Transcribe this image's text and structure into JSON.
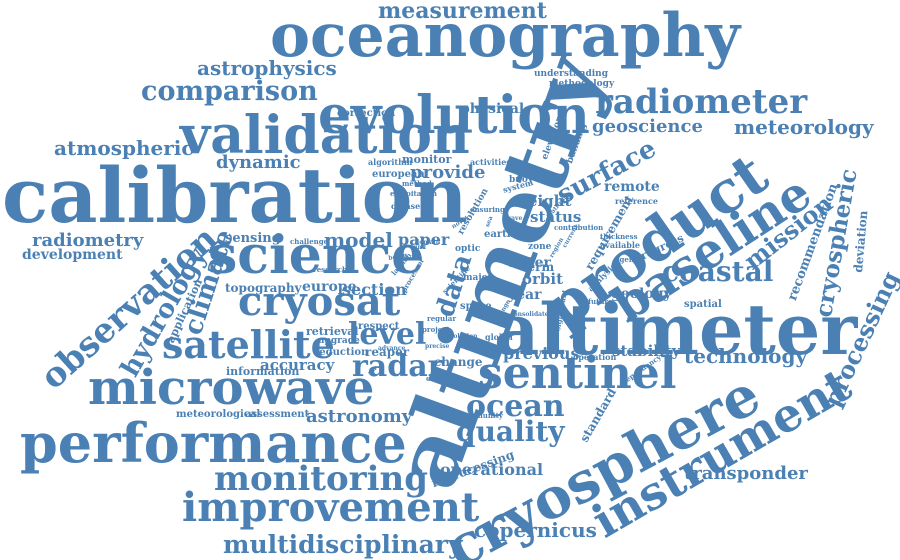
{
  "color": "#4a80b3",
  "words": [
    {
      "text": "altimetry",
      "weight": 1.0
    },
    {
      "text": "calibration",
      "weight": 0.95
    },
    {
      "text": "oceanography",
      "weight": 0.85
    },
    {
      "text": "altimeter",
      "weight": 0.85
    },
    {
      "text": "cryosphere",
      "weight": 0.8
    },
    {
      "text": "product",
      "weight": 0.78
    },
    {
      "text": "performance",
      "weight": 0.75
    },
    {
      "text": "validation",
      "weight": 0.72
    },
    {
      "text": "microwave",
      "weight": 0.7
    },
    {
      "text": "instrument",
      "weight": 0.68
    },
    {
      "text": "science",
      "weight": 0.65
    },
    {
      "text": "baseline",
      "weight": 0.65
    },
    {
      "text": "sentinel",
      "weight": 0.6
    },
    {
      "text": "evolution",
      "weight": 0.58
    },
    {
      "text": "improvement",
      "weight": 0.55
    },
    {
      "text": "cryosat",
      "weight": 0.55
    },
    {
      "text": "satellite",
      "weight": 0.52
    },
    {
      "text": "observation",
      "weight": 0.5
    },
    {
      "text": "monitoring",
      "weight": 0.5
    },
    {
      "text": "multidisciplinary",
      "weight": 0.45
    },
    {
      "text": "radiometer",
      "weight": 0.45
    },
    {
      "text": "comparison",
      "weight": 0.42
    },
    {
      "text": "surface",
      "weight": 0.42
    },
    {
      "text": "mission",
      "weight": 0.4
    },
    {
      "text": "coastal",
      "weight": 0.4
    },
    {
      "text": "ocean",
      "weight": 0.4
    },
    {
      "text": "quality",
      "weight": 0.38
    },
    {
      "text": "radar",
      "weight": 0.38
    },
    {
      "text": "level",
      "weight": 0.36
    },
    {
      "text": "copernicus",
      "weight": 0.35
    },
    {
      "text": "measurement",
      "weight": 0.35
    },
    {
      "text": "climate",
      "weight": 0.35
    },
    {
      "text": "hydrology",
      "weight": 0.34
    },
    {
      "text": "processing",
      "weight": 0.34
    },
    {
      "text": "cryospheric",
      "weight": 0.33
    },
    {
      "text": "transponder",
      "weight": 0.33
    },
    {
      "text": "astrophysics",
      "weight": 0.32
    },
    {
      "text": "meteorology",
      "weight": 0.32
    },
    {
      "text": "atmospheric",
      "weight": 0.3
    },
    {
      "text": "geoscience",
      "weight": 0.3
    },
    {
      "text": "technology",
      "weight": 0.3
    },
    {
      "text": "model",
      "weight": 0.3
    },
    {
      "text": "data",
      "weight": 0.3
    },
    {
      "text": "radiometry",
      "weight": 0.28
    },
    {
      "text": "astronomy",
      "weight": 0.28
    },
    {
      "text": "dynamic",
      "weight": 0.28
    },
    {
      "text": "provide",
      "weight": 0.27
    },
    {
      "text": "previous",
      "weight": 0.26
    },
    {
      "text": "operational",
      "weight": 0.25
    },
    {
      "text": "accuracy",
      "weight": 0.25
    },
    {
      "text": "height",
      "weight": 0.25
    },
    {
      "text": "status",
      "weight": 0.25
    },
    {
      "text": "orbit",
      "weight": 0.25
    },
    {
      "text": "stability",
      "weight": 0.24
    },
    {
      "text": "development",
      "weight": 0.24
    },
    {
      "text": "paper",
      "weight": 0.24
    },
    {
      "text": "europe",
      "weight": 0.24
    },
    {
      "text": "section",
      "weight": 0.24
    },
    {
      "text": "physical",
      "weight": 0.23
    },
    {
      "text": "geology",
      "weight": 0.23
    },
    {
      "text": "year",
      "weight": 0.23
    },
    {
      "text": "remote",
      "weight": 0.22
    },
    {
      "text": "sensing",
      "weight": 0.22
    },
    {
      "text": "topography",
      "weight": 0.22
    },
    {
      "text": "water",
      "weight": 0.22
    },
    {
      "text": "information",
      "weight": 0.21
    },
    {
      "text": "reaper",
      "weight": 0.2
    },
    {
      "text": "change",
      "weight": 0.2
    },
    {
      "text": "respect",
      "weight": 0.2
    },
    {
      "text": "retrieval",
      "weight": 0.2
    },
    {
      "text": "reduction",
      "weight": 0.2
    },
    {
      "text": "upgrade",
      "weight": 0.2
    },
    {
      "text": "application",
      "weight": 0.2
    },
    {
      "text": "term",
      "weight": 0.2
    },
    {
      "text": "reprocessing",
      "weight": 0.2
    },
    {
      "text": "standard",
      "weight": 0.2
    },
    {
      "text": "correction",
      "weight": 0.18
    },
    {
      "text": "understanding",
      "weight": 0.18
    },
    {
      "text": "methodology",
      "weight": 0.18
    },
    {
      "text": "monitor",
      "weight": 0.18
    },
    {
      "text": "european",
      "weight": 0.18
    },
    {
      "text": "algorithm",
      "weight": 0.17
    },
    {
      "text": "activities",
      "weight": 0.17
    },
    {
      "text": "elevation",
      "weight": 0.17
    },
    {
      "text": "building",
      "weight": 0.17
    },
    {
      "text": "system",
      "weight": 0.17
    },
    {
      "text": "buoy",
      "weight": 0.17
    },
    {
      "text": "earth",
      "weight": 0.16
    },
    {
      "text": "optic",
      "weight": 0.16
    },
    {
      "text": "land",
      "weight": 0.16
    },
    {
      "text": "zone",
      "weight": 0.16
    },
    {
      "text": "major",
      "weight": 0.16
    },
    {
      "text": "space",
      "weight": 0.15
    },
    {
      "text": "dataset",
      "weight": 0.15
    },
    {
      "text": "ensuring",
      "weight": 0.15
    },
    {
      "text": "resolution",
      "weight": 0.15
    },
    {
      "text": "requirement",
      "weight": 0.15
    },
    {
      "text": "progress",
      "weight": 0.15
    },
    {
      "text": "recommendation",
      "weight": 0.15
    },
    {
      "text": "deviation",
      "weight": 0.14
    },
    {
      "text": "spatial",
      "weight": 0.14
    },
    {
      "text": "thickness",
      "weight": 0.14
    },
    {
      "text": "available",
      "weight": 0.13
    },
    {
      "text": "reference",
      "weight": 0.13
    },
    {
      "text": "contribution",
      "weight": 0.13
    },
    {
      "text": "operation",
      "weight": 0.13
    },
    {
      "text": "community",
      "weight": 0.13
    },
    {
      "text": "overview",
      "weight": 0.12
    },
    {
      "text": "meteorological",
      "weight": 0.12
    },
    {
      "text": "assessment",
      "weight": 0.12
    },
    {
      "text": "challenge",
      "weight": 0.12
    },
    {
      "text": "exploitation",
      "weight": 0.12
    },
    {
      "text": "method",
      "weight": 0.12
    },
    {
      "text": "research",
      "weight": 0.12
    },
    {
      "text": "global",
      "weight": 0.12
    },
    {
      "text": "regular",
      "weight": 0.12
    },
    {
      "text": "project",
      "weight": 0.12
    },
    {
      "text": "solution",
      "weight": 0.12
    },
    {
      "text": "future",
      "weight": 0.12
    },
    {
      "text": "analysis",
      "weight": 0.12
    },
    {
      "text": "agency",
      "weight": 0.12
    },
    {
      "text": "domain",
      "weight": 0.12
    },
    {
      "text": "precise",
      "weight": 0.12
    },
    {
      "text": "advance",
      "weight": 0.12
    },
    {
      "text": "processor",
      "weight": 0.12
    },
    {
      "text": "dependency",
      "weight": 0.11
    },
    {
      "text": "significant",
      "weight": 0.11
    },
    {
      "text": "launch",
      "weight": 0.11
    },
    {
      "text": "scientific",
      "weight": 0.11
    },
    {
      "text": "being",
      "weight": 0.11
    },
    {
      "text": "range",
      "weight": 0.11
    },
    {
      "text": "region",
      "weight": 0.11
    },
    {
      "text": "polar",
      "weight": 0.11
    },
    {
      "text": "current",
      "weight": 0.11
    },
    {
      "text": "sea",
      "weight": 0.11
    },
    {
      "text": "novel",
      "weight": 0.11
    },
    {
      "text": "wind",
      "weight": 0.11
    },
    {
      "text": "wave",
      "weight": 0.11
    },
    {
      "text": "platform",
      "weight": 0.11
    },
    {
      "text": "consolidated",
      "weight": 0.11
    },
    {
      "text": "sar",
      "weight": 0.11
    }
  ]
}
